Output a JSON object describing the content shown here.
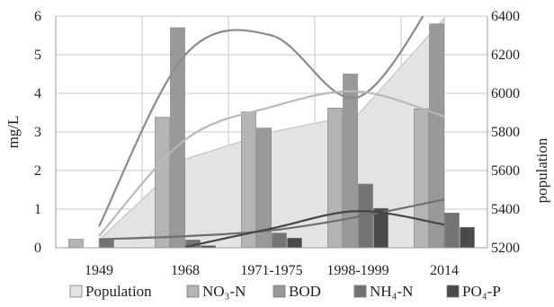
{
  "chart_data": {
    "type": "bar",
    "categories": [
      "1949",
      "1968",
      "1971-1975",
      "1998-1999",
      "2014"
    ],
    "ylabel_left": "mg/L",
    "ylabel_right": "population",
    "ylim_left": [
      0,
      6
    ],
    "yticks_left": [
      "0",
      "1",
      "2",
      "3",
      "4",
      "5",
      "6"
    ],
    "ylim_right": [
      5200,
      6400
    ],
    "yticks_right": [
      "5200",
      "5400",
      "5600",
      "5800",
      "6000",
      "6200",
      "6400"
    ],
    "grid": true,
    "legend_position": "bottom",
    "population": {
      "name": "Population",
      "type": "area",
      "axis": "right",
      "values": [
        5240,
        5660,
        5800,
        5890,
        6390
      ],
      "color": "#e3e3e3"
    },
    "series": [
      {
        "name": "NO₃-N",
        "type": "bar",
        "axis": "left",
        "color": "#b4b4b4",
        "values": [
          0.22,
          3.38,
          3.52,
          3.62,
          3.6
        ]
      },
      {
        "name": "BOD",
        "type": "bar",
        "axis": "left",
        "color": "#999999",
        "values": [
          null,
          5.7,
          3.1,
          4.5,
          5.8
        ]
      },
      {
        "name": "NH₄-N",
        "type": "bar",
        "axis": "left",
        "color": "#747474",
        "values": [
          0.22,
          0.2,
          0.38,
          1.65,
          0.9
        ]
      },
      {
        "name": "PO₄-P",
        "type": "bar",
        "axis": "left",
        "color": "#4a4a4a",
        "values": [
          null,
          0.05,
          0.25,
          1.02,
          0.53
        ]
      }
    ],
    "trendlines": [
      {
        "of": "BOD",
        "color": "#8c8c8c",
        "values": [
          0.55,
          5.0,
          5.5,
          3.9,
          6.9
        ]
      },
      {
        "of": "NO₃-N",
        "color": "#b9b9b9",
        "values": [
          0.3,
          2.8,
          3.65,
          4.05,
          3.4
        ]
      },
      {
        "of": "NH₄-N",
        "color": "#707070",
        "values": [
          0.22,
          0.3,
          0.45,
          0.8,
          1.25
        ]
      },
      {
        "of": "PO₄-P",
        "color": "#454545",
        "values": [
          null,
          0.02,
          0.5,
          0.95,
          0.6
        ]
      }
    ]
  }
}
